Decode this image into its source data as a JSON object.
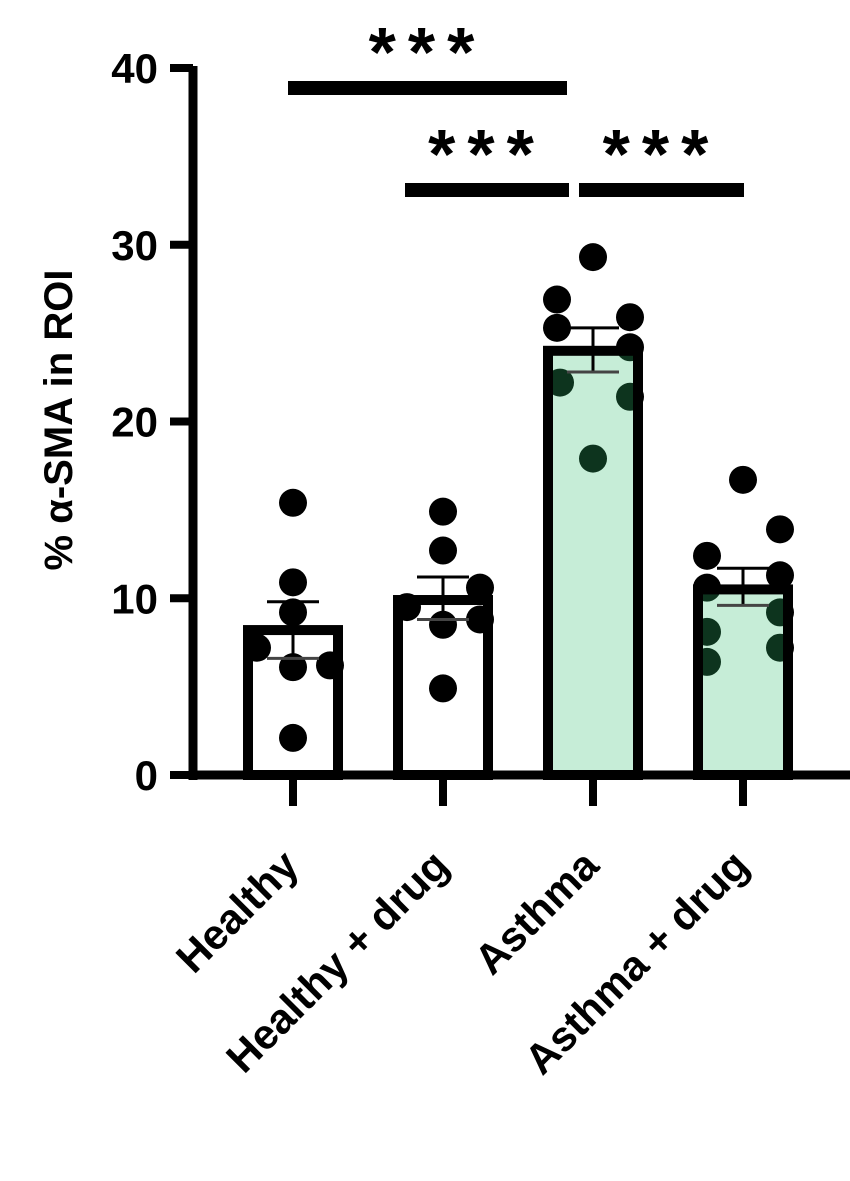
{
  "chart_data": {
    "type": "bar",
    "title": "",
    "xlabel": "",
    "ylabel": "% α-SMA in ROI",
    "ylim": [
      0,
      40
    ],
    "yticks": [
      "0",
      "10",
      "20",
      "30",
      "40"
    ],
    "grid": false,
    "categories": [
      "Healthy",
      "Healthy + drug",
      "Asthma",
      "Asthma + drug"
    ],
    "values": [
      8.2,
      9.9,
      24.0,
      10.5
    ],
    "error_low": [
      6.6,
      8.8,
      22.8,
      9.6
    ],
    "error_high": [
      9.8,
      11.2,
      25.3,
      11.7
    ],
    "bar_fills": [
      "none",
      "none",
      "#c6ead6",
      "#c6ead6"
    ],
    "points": [
      [
        15.4,
        10.9,
        9.2,
        7.2,
        6.1,
        6.2,
        2.1
      ],
      [
        14.9,
        12.7,
        10.6,
        9.5,
        8.5,
        8.8,
        4.9
      ],
      [
        29.3,
        26.9,
        25.3,
        25.9,
        24.2,
        22.2,
        21.4,
        17.9
      ],
      [
        16.7,
        13.9,
        12.4,
        11.3,
        10.6,
        9.2,
        8.1,
        7.2,
        6.4
      ]
    ],
    "significance": [
      {
        "from": 0,
        "to": 2,
        "label": "***"
      },
      {
        "from": 1,
        "to": 2,
        "label": "***"
      },
      {
        "from": 2,
        "to": 3,
        "label": "***"
      }
    ]
  }
}
